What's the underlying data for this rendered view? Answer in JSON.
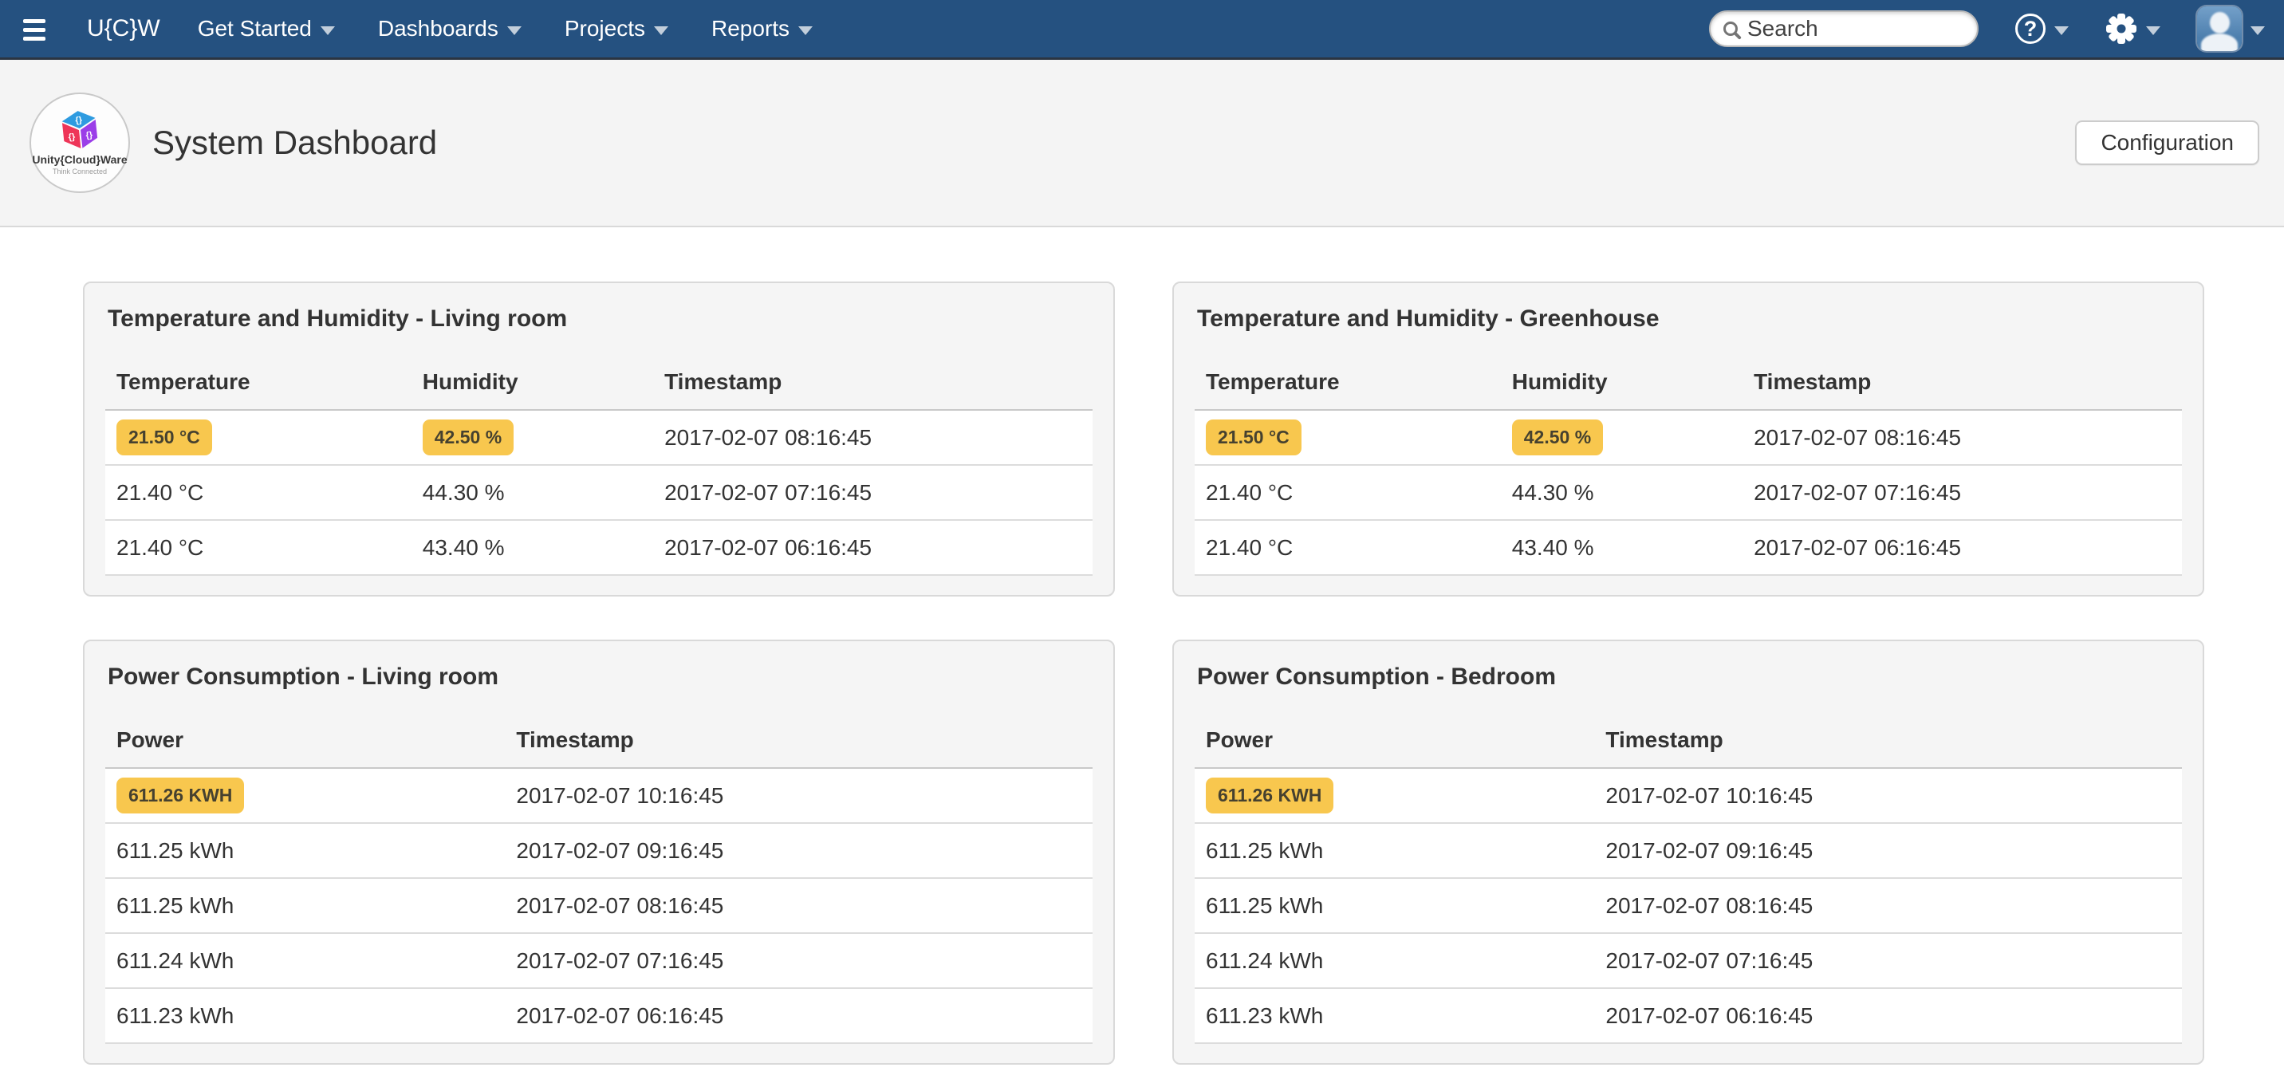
{
  "colors": {
    "navbar_bg": "#255180",
    "navbar_border": "#2b3542",
    "badge_bg": "#f8c74e",
    "badge_text": "#46412f",
    "avatar_bg": "#4d7fae",
    "band_bg": "#f4f4f4",
    "panel_bg": "#f5f5f5"
  },
  "navbar": {
    "brand": "U{C}W",
    "items": [
      {
        "label": "Get Started"
      },
      {
        "label": "Dashboards"
      },
      {
        "label": "Projects"
      },
      {
        "label": "Reports"
      }
    ],
    "search": {
      "placeholder": "Search",
      "value": ""
    },
    "help_glyph": "?"
  },
  "header": {
    "title": "System Dashboard",
    "logo": {
      "line1": "Unity{Cloud}Ware",
      "line2": "Think Connected",
      "brace": "{}"
    },
    "configuration_label": "Configuration"
  },
  "panels": [
    {
      "title": "Temperature and Humidity - Living room",
      "columns": [
        "Temperature",
        "Humidity",
        "Timestamp"
      ],
      "rows": [
        {
          "cells": [
            "21.50 °C",
            "42.50 %",
            "2017-02-07 08:16:45"
          ],
          "badged": [
            true,
            true,
            false
          ]
        },
        {
          "cells": [
            "21.40 °C",
            "44.30 %",
            "2017-02-07 07:16:45"
          ],
          "badged": [
            false,
            false,
            false
          ]
        },
        {
          "cells": [
            "21.40 °C",
            "43.40 %",
            "2017-02-07 06:16:45"
          ],
          "badged": [
            false,
            false,
            false
          ]
        }
      ]
    },
    {
      "title": "Temperature and Humidity - Greenhouse",
      "columns": [
        "Temperature",
        "Humidity",
        "Timestamp"
      ],
      "rows": [
        {
          "cells": [
            "21.50 °C",
            "42.50 %",
            "2017-02-07 08:16:45"
          ],
          "badged": [
            true,
            true,
            false
          ]
        },
        {
          "cells": [
            "21.40 °C",
            "44.30 %",
            "2017-02-07 07:16:45"
          ],
          "badged": [
            false,
            false,
            false
          ]
        },
        {
          "cells": [
            "21.40 °C",
            "43.40 %",
            "2017-02-07 06:16:45"
          ],
          "badged": [
            false,
            false,
            false
          ]
        }
      ]
    },
    {
      "title": "Power Consumption - Living room",
      "columns": [
        "Power",
        "Timestamp"
      ],
      "rows": [
        {
          "cells": [
            "611.26 KWH",
            "2017-02-07 10:16:45"
          ],
          "badged": [
            true,
            false
          ]
        },
        {
          "cells": [
            "611.25 kWh",
            "2017-02-07 09:16:45"
          ],
          "badged": [
            false,
            false
          ]
        },
        {
          "cells": [
            "611.25 kWh",
            "2017-02-07 08:16:45"
          ],
          "badged": [
            false,
            false
          ]
        },
        {
          "cells": [
            "611.24 kWh",
            "2017-02-07 07:16:45"
          ],
          "badged": [
            false,
            false
          ]
        },
        {
          "cells": [
            "611.23 kWh",
            "2017-02-07 06:16:45"
          ],
          "badged": [
            false,
            false
          ]
        }
      ]
    },
    {
      "title": "Power Consumption - Bedroom",
      "columns": [
        "Power",
        "Timestamp"
      ],
      "rows": [
        {
          "cells": [
            "611.26 KWH",
            "2017-02-07 10:16:45"
          ],
          "badged": [
            true,
            false
          ]
        },
        {
          "cells": [
            "611.25 kWh",
            "2017-02-07 09:16:45"
          ],
          "badged": [
            false,
            false
          ]
        },
        {
          "cells": [
            "611.25 kWh",
            "2017-02-07 08:16:45"
          ],
          "badged": [
            false,
            false
          ]
        },
        {
          "cells": [
            "611.24 kWh",
            "2017-02-07 07:16:45"
          ],
          "badged": [
            false,
            false
          ]
        },
        {
          "cells": [
            "611.23 kWh",
            "2017-02-07 06:16:45"
          ],
          "badged": [
            false,
            false
          ]
        }
      ]
    }
  ]
}
